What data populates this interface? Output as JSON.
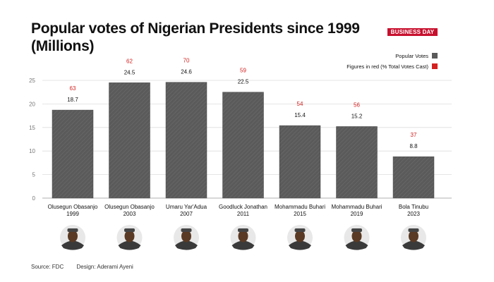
{
  "header": {
    "title_line1": "Popular votes of Nigerian Presidents since 1999",
    "title_line2": "(Millions)",
    "logo_text": "BUSINESS DAY"
  },
  "footer": {
    "source": "Source: FDC",
    "design": "Design: Aderami Ayeni"
  },
  "colors": {
    "bar": "#5a5a5a",
    "bar_hatch": "#6a6a6a",
    "percent": "#d42020",
    "value": "#111111",
    "grid": "#dddddd",
    "brand": "#c8102e"
  },
  "chart_data": {
    "type": "bar",
    "title": "Popular votes of Nigerian Presidents since 1999 (Millions)",
    "xlabel": "",
    "ylabel": "",
    "ylim": [
      0,
      25
    ],
    "yticks": [
      0,
      5,
      10,
      15,
      20,
      25
    ],
    "grid": true,
    "categories": [
      {
        "name": "Olusegun Obasanjo",
        "year": "1999"
      },
      {
        "name": "Olusegun Obasanjo",
        "year": "2003"
      },
      {
        "name": "Umaru Yar'Adua",
        "year": "2007"
      },
      {
        "name": "Goodluck Jonathan",
        "year": "2011"
      },
      {
        "name": "Mohammadu Buhari",
        "year": "2015"
      },
      {
        "name": "Mohammadu Buhari",
        "year": "2019"
      },
      {
        "name": "Bola Tinubu",
        "year": "2023"
      }
    ],
    "series": [
      {
        "name": "Popular Votes",
        "values": [
          18.7,
          24.5,
          24.6,
          22.5,
          15.4,
          15.2,
          8.8
        ]
      },
      {
        "name": "Figures in red (% Total Votes Cast)",
        "values": [
          63,
          62,
          70,
          59,
          54,
          56,
          37
        ]
      }
    ],
    "value_labels": [
      "18.7",
      "24.5",
      "24.6",
      "22.5",
      "15.4",
      "15.2",
      "8.8"
    ],
    "percent_labels": [
      "63",
      "62",
      "70",
      "59",
      "54",
      "56",
      "37"
    ],
    "legend": {
      "position": "top-right",
      "entries": [
        "Popular Votes",
        "Figures in red (% Total Votes Cast)"
      ]
    }
  }
}
